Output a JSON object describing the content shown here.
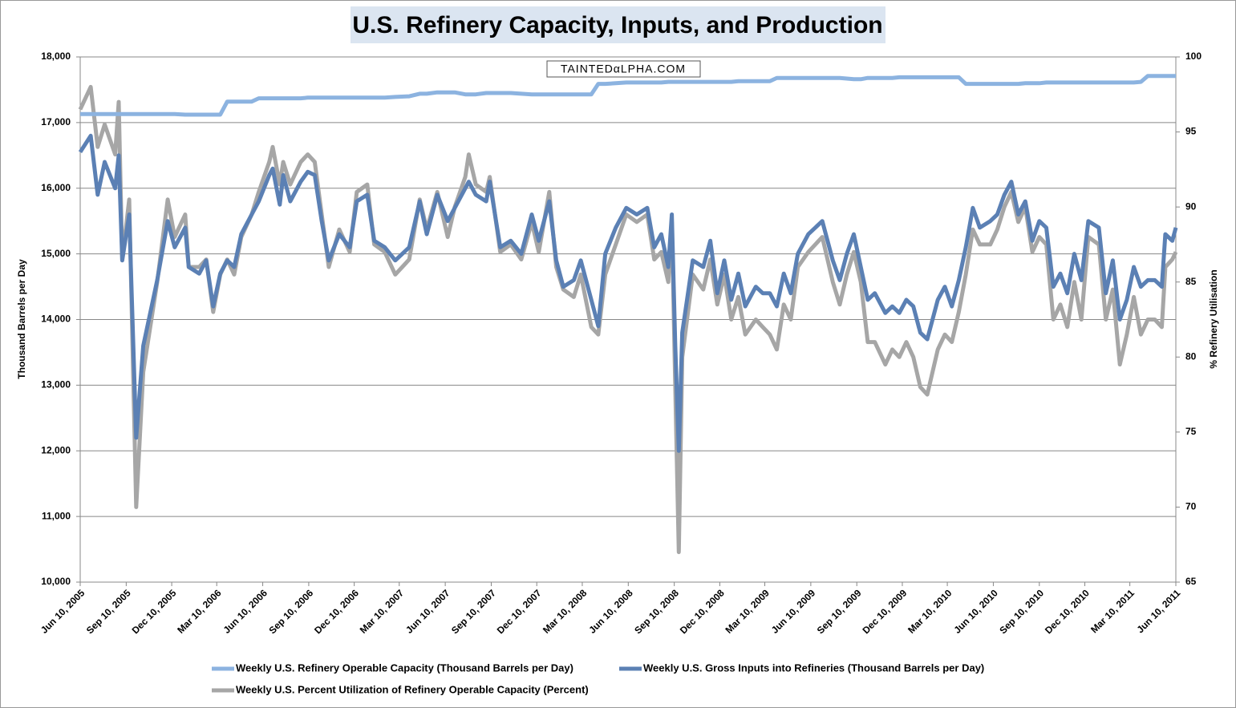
{
  "chart_data": {
    "type": "line",
    "title": "U.S. Refinery Capacity, Inputs, and Production",
    "watermark": "TAINTEDαLPHA.COM",
    "ylabel": "Thousand Barrels per Day",
    "y2label": "% Refinery Utilisation",
    "x": [
      "Jun 10, 2005",
      "Jul 1, 2005",
      "Jul 15, 2005",
      "Jul 29, 2005",
      "Aug 19, 2005",
      "Aug 26, 2005",
      "Sep 2, 2005",
      "Sep 16, 2005",
      "Sep 30, 2005",
      "Oct 14, 2005",
      "Nov 11, 2005",
      "Dec 2, 2005",
      "Dec 16, 2005",
      "Jan 6, 2006",
      "Jan 13, 2006",
      "Feb 3, 2006",
      "Feb 17, 2006",
      "Mar 3, 2006",
      "Mar 17, 2006",
      "Mar 31, 2006",
      "Apr 14, 2006",
      "Apr 28, 2006",
      "May 19, 2006",
      "Jun 2, 2006",
      "Jun 23, 2006",
      "Jun 30, 2006",
      "Jul 14, 2006",
      "Jul 21, 2006",
      "Aug 4, 2006",
      "Aug 25, 2006",
      "Sep 8, 2006",
      "Sep 22, 2006",
      "Oct 6, 2006",
      "Oct 20, 2006",
      "Nov 10, 2006",
      "Dec 1, 2006",
      "Dec 15, 2006",
      "Jan 5, 2007",
      "Jan 19, 2007",
      "Feb 9, 2007",
      "Mar 2, 2007",
      "Mar 30, 2007",
      "Apr 20, 2007",
      "May 4, 2007",
      "May 25, 2007",
      "Jun 15, 2007",
      "Jun 29, 2007",
      "Jul 20, 2007",
      "Jul 27, 2007",
      "Aug 10, 2007",
      "Aug 31, 2007",
      "Sep 7, 2007",
      "Sep 28, 2007",
      "Oct 19, 2007",
      "Nov 9, 2007",
      "Nov 30, 2007",
      "Dec 14, 2007",
      "Jan 4, 2008",
      "Jan 18, 2008",
      "Feb 1, 2008",
      "Feb 22, 2008",
      "Mar 7, 2008",
      "Mar 28, 2008",
      "Apr 11, 2008",
      "Apr 25, 2008",
      "May 16, 2008",
      "Jun 6, 2008",
      "Jun 27, 2008",
      "Jul 18, 2008",
      "Aug 1, 2008",
      "Aug 15, 2008",
      "Aug 29, 2008",
      "Sep 5, 2008",
      "Sep 12, 2008",
      "Sep 19, 2008",
      "Sep 26, 2008",
      "Oct 17, 2008",
      "Nov 7, 2008",
      "Nov 21, 2008",
      "Dec 5, 2008",
      "Dec 19, 2008",
      "Jan 2, 2009",
      "Jan 16, 2009",
      "Jan 30, 2009",
      "Feb 20, 2009",
      "Mar 6, 2009",
      "Mar 20, 2009",
      "Apr 3, 2009",
      "Apr 17, 2009",
      "May 1, 2009",
      "May 15, 2009",
      "Jun 5, 2009",
      "Jun 19, 2009",
      "Jul 3, 2009",
      "Jul 24, 2009",
      "Aug 7, 2009",
      "Aug 21, 2009",
      "Sep 4, 2009",
      "Sep 18, 2009",
      "Oct 2, 2009",
      "Oct 16, 2009",
      "Nov 6, 2009",
      "Nov 20, 2009",
      "Dec 4, 2009",
      "Dec 18, 2009",
      "Jan 1, 2010",
      "Jan 15, 2010",
      "Jan 29, 2010",
      "Feb 19, 2010",
      "Mar 5, 2010",
      "Mar 19, 2010",
      "Apr 2, 2010",
      "Apr 16, 2010",
      "Apr 30, 2010",
      "May 14, 2010",
      "Jun 4, 2010",
      "Jun 18, 2010",
      "Jul 2, 2010",
      "Jul 16, 2010",
      "Jul 30, 2010",
      "Aug 13, 2010",
      "Aug 27, 2010",
      "Sep 10, 2010",
      "Sep 24, 2010",
      "Oct 8, 2010",
      "Oct 22, 2010",
      "Nov 5, 2010",
      "Nov 19, 2010",
      "Dec 3, 2010",
      "Dec 17, 2010",
      "Jan 7, 2011",
      "Jan 21, 2011",
      "Feb 4, 2011",
      "Feb 18, 2011",
      "Mar 4, 2011",
      "Mar 18, 2011",
      "Apr 1, 2011",
      "Apr 15, 2011",
      "Apr 29, 2011",
      "May 13, 2011",
      "May 20, 2011",
      "Jun 3, 2011",
      "Jun 10, 2011"
    ],
    "series": [
      {
        "name": "Weekly U.S. Refinery Operable Capacity  (Thousand Barrels per Day)",
        "color": "#8cb3e0",
        "values": [
          17130,
          17130,
          17130,
          17130,
          17130,
          17130,
          17130,
          17130,
          17130,
          17130,
          17130,
          17130,
          17130,
          17120,
          17120,
          17120,
          17120,
          17120,
          17120,
          17320,
          17320,
          17320,
          17320,
          17370,
          17370,
          17370,
          17370,
          17370,
          17370,
          17370,
          17380,
          17380,
          17380,
          17380,
          17380,
          17380,
          17380,
          17380,
          17380,
          17380,
          17390,
          17400,
          17440,
          17440,
          17460,
          17460,
          17460,
          17430,
          17430,
          17430,
          17450,
          17450,
          17450,
          17450,
          17440,
          17430,
          17430,
          17430,
          17430,
          17430,
          17430,
          17430,
          17430,
          17590,
          17590,
          17600,
          17610,
          17610,
          17610,
          17610,
          17610,
          17620,
          17620,
          17620,
          17620,
          17620,
          17620,
          17620,
          17620,
          17620,
          17620,
          17620,
          17630,
          17630,
          17630,
          17630,
          17630,
          17680,
          17680,
          17680,
          17680,
          17680,
          17680,
          17680,
          17680,
          17680,
          17670,
          17660,
          17660,
          17680,
          17680,
          17680,
          17680,
          17690,
          17690,
          17690,
          17690,
          17690,
          17690,
          17690,
          17690,
          17690,
          17590,
          17590,
          17590,
          17590,
          17590,
          17590,
          17590,
          17590,
          17600,
          17600,
          17600,
          17610,
          17610,
          17610,
          17610,
          17610,
          17610,
          17610,
          17610,
          17610,
          17610,
          17610,
          17610,
          17610,
          17620,
          17710,
          17710,
          17710,
          17710,
          17710,
          17710
        ]
      },
      {
        "name": "Weekly U.S. Gross Inputs into Refineries  (Thousand Barrels per Day)",
        "color": "#5b80b4",
        "values": [
          16550,
          16800,
          15900,
          16400,
          16000,
          16500,
          14900,
          15600,
          12200,
          13600,
          14600,
          15500,
          15100,
          15400,
          14800,
          14700,
          14900,
          14200,
          14700,
          14900,
          14800,
          15300,
          15600,
          15800,
          16200,
          16300,
          15750,
          16200,
          15800,
          16100,
          16250,
          16200,
          15500,
          14900,
          15300,
          15100,
          15800,
          15900,
          15200,
          15100,
          14900,
          15100,
          15800,
          15300,
          15900,
          15500,
          15700,
          16000,
          16100,
          15900,
          15800,
          16100,
          15100,
          15200,
          15000,
          15600,
          15200,
          15800,
          14900,
          14500,
          14600,
          14900,
          14300,
          13900,
          15000,
          15400,
          15700,
          15600,
          15700,
          15100,
          15300,
          14800,
          15600,
          13600,
          12000,
          13800,
          14900,
          14800,
          15200,
          14400,
          14900,
          14300,
          14700,
          14200,
          14500,
          14400,
          14400,
          14200,
          14700,
          14400,
          15000,
          15300,
          15400,
          15500,
          14900,
          14600,
          15000,
          15300,
          14800,
          14300,
          14400,
          14100,
          14200,
          14100,
          14300,
          14200,
          13800,
          13700,
          14300,
          14500,
          14200,
          14600,
          15100,
          15700,
          15400,
          15500,
          15600,
          15900,
          16100,
          15600,
          15800,
          15200,
          15500,
          15400,
          14500,
          14700,
          14400,
          15000,
          14600,
          15500,
          15400,
          14400,
          14900,
          14000,
          14300,
          14800,
          14500,
          14600,
          14600,
          14500,
          15300,
          15200,
          15400
        ]
      },
      {
        "name": "Weekly U.S. Percent Utilization of Refinery Operable Capacity  (Percent)",
        "color": "#a6a6a6",
        "axis": "y2",
        "values": [
          96.5,
          98,
          94,
          95.5,
          93.5,
          97,
          86.5,
          90.5,
          70,
          79,
          85,
          90.5,
          88,
          89.5,
          86,
          86,
          86.5,
          83,
          85.5,
          86.5,
          85.5,
          88,
          89.5,
          91,
          93,
          94,
          91.5,
          93,
          91.5,
          93,
          93.5,
          93,
          89.5,
          86,
          88.5,
          87,
          91,
          91.5,
          87.5,
          87,
          85.5,
          86.5,
          90.5,
          88.5,
          91,
          88,
          90,
          92,
          93.5,
          91.5,
          91,
          92,
          87,
          87.5,
          86.5,
          89,
          87,
          91,
          86,
          84.5,
          84,
          85.5,
          82,
          81.5,
          85.5,
          87.5,
          89.5,
          89,
          89.5,
          86.5,
          87,
          85,
          89,
          78,
          67,
          80,
          85.5,
          84.5,
          86.5,
          83.5,
          85.5,
          82.5,
          84,
          81.5,
          82.5,
          82,
          81.5,
          80.5,
          83.5,
          82.5,
          86,
          87,
          87.5,
          88,
          85,
          83.5,
          85.5,
          87,
          85,
          81,
          81,
          79.5,
          80.5,
          80,
          81,
          80,
          78,
          77.5,
          80.5,
          81.5,
          81,
          83,
          85.5,
          88.5,
          87.5,
          87.5,
          88.5,
          90,
          91,
          89,
          90,
          87,
          88,
          87.5,
          82.5,
          83.5,
          82,
          85,
          82.5,
          88,
          87.5,
          82.5,
          84.5,
          79.5,
          81.5,
          84,
          81.5,
          82.5,
          82.5,
          82,
          86,
          86.5,
          87
        ]
      }
    ],
    "xticks": [
      "Jun 10, 2005",
      "Sep 10, 2005",
      "Dec 10, 2005",
      "Mar 10, 2006",
      "Jun 10, 2006",
      "Sep 10, 2006",
      "Dec 10, 2006",
      "Mar 10, 2007",
      "Jun 10, 2007",
      "Sep 10, 2007",
      "Dec 10, 2007",
      "Mar 10, 2008",
      "Jun 10, 2008",
      "Sep 10, 2008",
      "Dec 10, 2008",
      "Mar 10, 2009",
      "Jun 10, 2009",
      "Sep 10, 2009",
      "Dec 10, 2009",
      "Mar 10, 2010",
      "Jun 10, 2010",
      "Sep 10, 2010",
      "Dec 10, 2010",
      "Mar 10, 2011",
      "Jun 10, 2011"
    ],
    "ylim": [
      10000,
      18000
    ],
    "yticks": [
      {
        "value": 10000,
        "label": "10,000"
      },
      {
        "value": 11000,
        "label": "11,000"
      },
      {
        "value": 12000,
        "label": "12,000"
      },
      {
        "value": 13000,
        "label": "13,000"
      },
      {
        "value": 14000,
        "label": "14,000"
      },
      {
        "value": 15000,
        "label": "15,000"
      },
      {
        "value": 16000,
        "label": "16,000"
      },
      {
        "value": 17000,
        "label": "17,000"
      },
      {
        "value": 18000,
        "label": "18,000"
      }
    ],
    "y2lim": [
      65,
      100
    ],
    "y2ticks": [
      65,
      70,
      75,
      80,
      85,
      90,
      95,
      100
    ],
    "grid": true,
    "legend": "bottom"
  }
}
